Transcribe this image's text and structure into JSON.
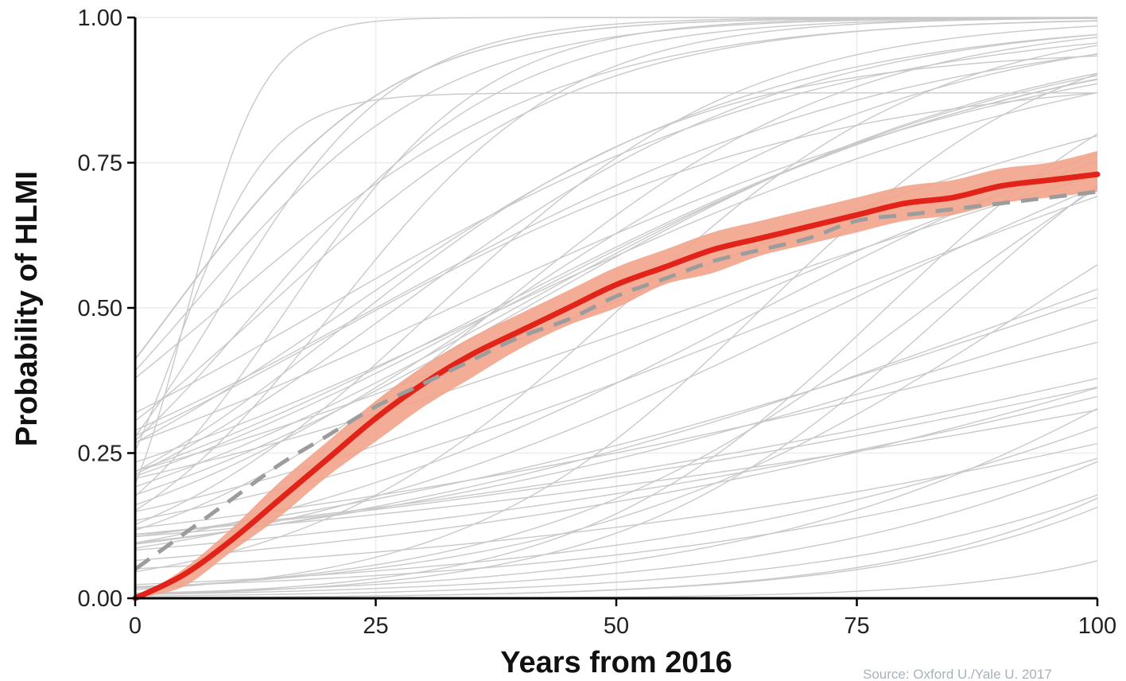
{
  "chart_data": {
    "type": "line",
    "xlabel": "Years from 2016",
    "ylabel": "Probability of HLMI",
    "source": "Source: Oxford U./Yale U. 2017",
    "xlim": [
      0,
      100
    ],
    "ylim": [
      0,
      1
    ],
    "xticks": [
      0,
      25,
      50,
      75,
      100
    ],
    "yticks": [
      0,
      0.25,
      0.5,
      0.75,
      1
    ],
    "xtick_labels": [
      "0",
      "25",
      "50",
      "75",
      "100"
    ],
    "ytick_labels": [
      "0.00",
      "0.25",
      "0.50",
      "0.75",
      "1.00"
    ],
    "grid": true,
    "legend": "none",
    "x": [
      0,
      5,
      10,
      15,
      20,
      25,
      30,
      35,
      40,
      45,
      50,
      55,
      60,
      65,
      70,
      75,
      80,
      85,
      90,
      95,
      100
    ],
    "series": [
      {
        "style": "solid",
        "color": "#e2231a",
        "values": [
          0.0,
          0.04,
          0.1,
          0.17,
          0.24,
          0.31,
          0.37,
          0.42,
          0.46,
          0.5,
          0.54,
          0.57,
          0.6,
          0.62,
          0.64,
          0.66,
          0.68,
          0.69,
          0.71,
          0.72,
          0.73
        ],
        "band_lower": [
          0.0,
          0.02,
          0.08,
          0.14,
          0.21,
          0.27,
          0.33,
          0.38,
          0.43,
          0.47,
          0.5,
          0.54,
          0.56,
          0.59,
          0.61,
          0.63,
          0.65,
          0.66,
          0.68,
          0.69,
          0.7
        ],
        "band_upper": [
          0.0,
          0.05,
          0.12,
          0.2,
          0.27,
          0.34,
          0.4,
          0.45,
          0.49,
          0.53,
          0.57,
          0.6,
          0.63,
          0.65,
          0.67,
          0.69,
          0.71,
          0.72,
          0.74,
          0.75,
          0.77
        ],
        "band_color": "#f2a48c"
      },
      {
        "style": "dashed",
        "color": "#9c9c9c",
        "values": [
          0.05,
          0.11,
          0.17,
          0.23,
          0.28,
          0.33,
          0.37,
          0.41,
          0.45,
          0.48,
          0.52,
          0.55,
          0.58,
          0.6,
          0.62,
          0.65,
          0.66,
          0.67,
          0.68,
          0.69,
          0.7
        ]
      }
    ],
    "background_curves": {
      "color": "#c9c9c9",
      "count": 56,
      "shape": "logistic CDFs of individual respondents' forecasts"
    }
  }
}
